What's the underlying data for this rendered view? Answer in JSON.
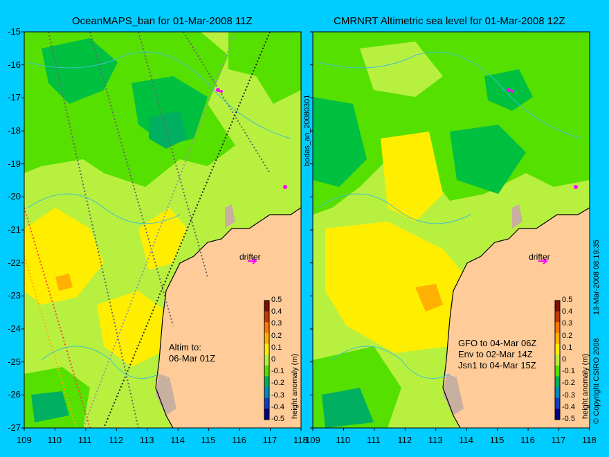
{
  "panels": [
    {
      "title": "OceanMAPS_ban for 01-Mar-2008 11Z",
      "altim_note": [
        "Altim to:",
        "06-Mar 01Z"
      ]
    },
    {
      "title": "CMRNRT Altimetric sea level  for 01-Mar-2008 12Z",
      "gfo_note": [
        "GFO to 04-Mar 06Z",
        "Env to 02-Mar 14Z",
        "Jsn1 to 04-Mar 15Z"
      ]
    }
  ],
  "drifter_label": "drifter",
  "y_ticks": [
    "-15",
    "-16",
    "-17",
    "-18",
    "-19",
    "-20",
    "-21",
    "-22",
    "-23",
    "-24",
    "-25",
    "-26",
    "-27"
  ],
  "x_ticks": [
    "109",
    "110",
    "111",
    "112",
    "113",
    "114",
    "115",
    "116",
    "117",
    "118"
  ],
  "colorbar": {
    "ticks": [
      "0.5",
      "0.4",
      "0.3",
      "0.2",
      "0.1",
      "0",
      "-0.1",
      "-0.2",
      "-0.3",
      "-0.4",
      "-0.5"
    ],
    "label": "height anomaly (m)",
    "colors": [
      "#7a1000",
      "#c43a00",
      "#ff7700",
      "#ffb000",
      "#ffee00",
      "#b8f040",
      "#55e000",
      "#00b060",
      "#0088c0",
      "#1040c0",
      "#000080"
    ]
  },
  "side_label": "bodas_an_20080301",
  "copyright": "© Copyright CSIRO 2008",
  "timestamp": "13-Mar-2008 08:19:35",
  "colors": {
    "background": "#00ccff",
    "land": "#ffcc99",
    "coast_shelf": "#c8b0a0",
    "drifter": "#ff00ff"
  }
}
